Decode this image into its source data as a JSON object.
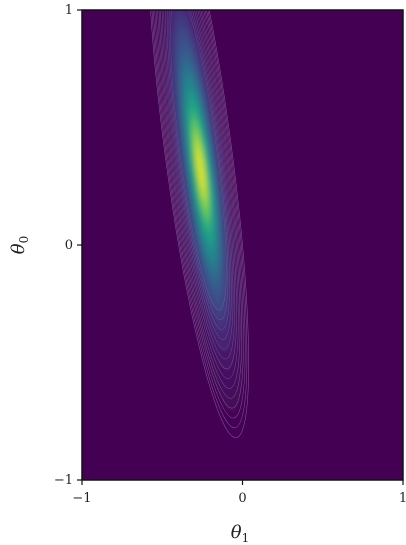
{
  "chart_data": {
    "type": "heatmap",
    "title": "",
    "xlabel": "θ",
    "xlabel_sub": "1",
    "ylabel": "θ",
    "ylabel_sub": "0",
    "xlim": [
      -1,
      1
    ],
    "ylim": [
      -1,
      1
    ],
    "xticks": [
      -1,
      0,
      1
    ],
    "yticks": [
      -1,
      0,
      1
    ],
    "xtick_labels": [
      "−1",
      "0",
      "1"
    ],
    "ytick_labels": [
      "−1",
      "0",
      "1"
    ],
    "colormap": "viridis",
    "grid": false,
    "density_peak": {
      "theta1": -0.26,
      "theta0": 0.32
    },
    "density_axis_direction": {
      "theta1": -0.19,
      "theta0": 0.98
    },
    "density_sd_major": 0.38,
    "density_sd_minor": 0.065,
    "colors": {
      "background": "#440154",
      "contour_line": "#d8d8e8"
    }
  }
}
